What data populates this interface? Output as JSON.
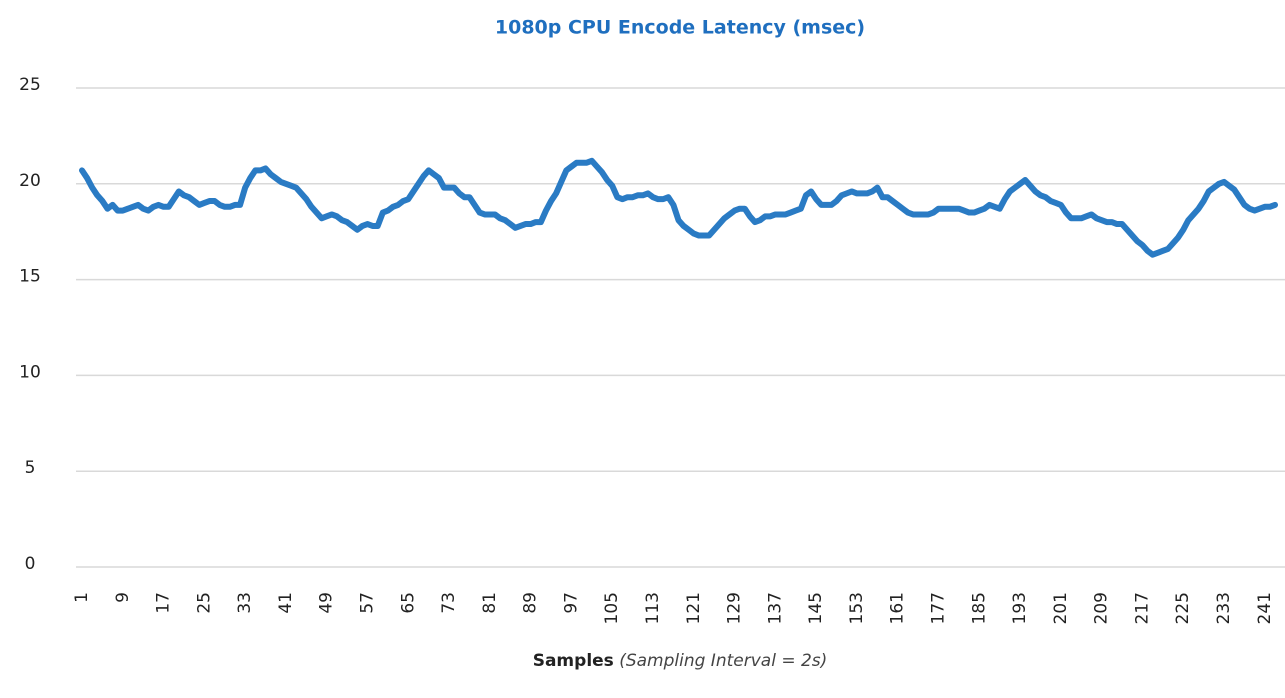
{
  "chart_data": {
    "type": "line",
    "title": "1080p CPU Encode Latency (msec)",
    "x_label": "Samples",
    "x_label_note": "(Sampling Interval = 2s)",
    "color": "#2a7bc4",
    "ylim": [
      0,
      25
    ],
    "yticks": [
      0,
      5,
      10,
      15,
      20,
      25
    ],
    "grid": true,
    "categories": [
      1,
      null,
      null,
      null,
      null,
      null,
      null,
      null,
      9,
      null,
      null,
      null,
      null,
      null,
      null,
      null,
      17,
      null,
      null,
      null,
      null,
      null,
      null,
      null,
      25,
      null,
      null,
      null,
      null,
      null,
      null,
      null,
      33,
      null,
      null,
      null,
      null,
      null,
      null,
      null,
      41,
      null,
      null,
      null,
      null,
      null,
      null,
      null,
      49,
      null,
      null,
      null,
      null,
      null,
      null,
      null,
      57,
      null,
      null,
      null,
      null,
      null,
      null,
      null,
      65,
      null,
      null,
      null,
      null,
      null,
      null,
      null,
      73,
      null,
      null,
      null,
      null,
      null,
      null,
      null,
      81,
      null,
      null,
      null,
      null,
      null,
      null,
      null,
      89,
      null,
      null,
      null,
      null,
      null,
      null,
      null,
      97,
      null,
      null,
      null,
      null,
      null,
      null,
      null,
      105,
      null,
      null,
      null,
      null,
      null,
      null,
      null,
      113,
      null,
      null,
      null,
      null,
      null,
      null,
      null,
      121,
      null,
      null,
      null,
      null,
      null,
      null,
      null,
      129,
      null,
      null,
      null,
      null,
      null,
      null,
      null,
      137,
      null,
      null,
      null,
      null,
      null,
      null,
      null,
      145,
      null,
      null,
      null,
      null,
      null,
      null,
      null,
      153,
      null,
      null,
      null,
      null,
      null,
      null,
      null,
      161,
      null,
      null,
      null,
      null,
      null,
      null,
      null,
      177,
      null,
      null,
      null,
      null,
      null,
      null,
      null,
      185,
      null,
      null,
      null,
      null,
      null,
      null,
      null,
      193,
      null,
      null,
      null,
      null,
      null,
      null,
      null,
      201,
      null,
      null,
      null,
      null,
      null,
      null,
      null,
      209,
      null,
      null,
      null,
      null,
      null,
      null,
      null,
      217,
      null,
      null,
      null,
      null,
      null,
      null,
      null,
      225,
      null,
      null,
      null,
      null,
      null,
      null,
      null,
      233,
      null,
      null,
      null,
      null,
      null,
      null,
      null,
      241,
      null,
      null
    ],
    "values": [
      20.7,
      20.3,
      19.8,
      19.4,
      19.1,
      18.7,
      18.9,
      18.6,
      18.6,
      18.7,
      18.8,
      18.9,
      18.7,
      18.6,
      18.8,
      18.9,
      18.8,
      18.8,
      19.2,
      19.6,
      19.4,
      19.3,
      19.1,
      18.9,
      19.0,
      19.1,
      19.1,
      18.9,
      18.8,
      18.8,
      18.9,
      18.9,
      19.8,
      20.3,
      20.7,
      20.7,
      20.8,
      20.5,
      20.3,
      20.1,
      20.0,
      19.9,
      19.8,
      19.5,
      19.2,
      18.8,
      18.5,
      18.2,
      18.3,
      18.4,
      18.3,
      18.1,
      18.0,
      17.8,
      17.6,
      17.8,
      17.9,
      17.8,
      17.8,
      18.5,
      18.6,
      18.8,
      18.9,
      19.1,
      19.2,
      19.6,
      20.0,
      20.4,
      20.7,
      20.5,
      20.3,
      19.8,
      19.8,
      19.8,
      19.5,
      19.3,
      19.3,
      18.9,
      18.5,
      18.4,
      18.4,
      18.4,
      18.2,
      18.1,
      17.9,
      17.7,
      17.8,
      17.9,
      17.9,
      18.0,
      18.0,
      18.6,
      19.1,
      19.5,
      20.1,
      20.7,
      20.9,
      21.1,
      21.1,
      21.1,
      21.2,
      20.9,
      20.6,
      20.2,
      19.9,
      19.3,
      19.2,
      19.3,
      19.3,
      19.4,
      19.4,
      19.5,
      19.3,
      19.2,
      19.2,
      19.3,
      18.9,
      18.1,
      17.8,
      17.6,
      17.4,
      17.3,
      17.3,
      17.3,
      17.6,
      17.9,
      18.2,
      18.4,
      18.6,
      18.7,
      18.7,
      18.3,
      18.0,
      18.1,
      18.3,
      18.3,
      18.4,
      18.4,
      18.4,
      18.5,
      18.6,
      18.7,
      19.4,
      19.6,
      19.2,
      18.9,
      18.9,
      18.9,
      19.1,
      19.4,
      19.5,
      19.6,
      19.5,
      19.5,
      19.5,
      19.6,
      19.8,
      19.3,
      19.3,
      19.1,
      18.9,
      18.7,
      18.5,
      18.4,
      18.4,
      18.4,
      18.4,
      18.5,
      18.7,
      18.7,
      18.7,
      18.7,
      18.7,
      18.6,
      18.5,
      18.5,
      18.6,
      18.7,
      18.9,
      18.8,
      18.7,
      19.2,
      19.6,
      19.8,
      20.0,
      20.2,
      19.9,
      19.6,
      19.4,
      19.3,
      19.1,
      19.0,
      18.9,
      18.5,
      18.2,
      18.2,
      18.2,
      18.3,
      18.4,
      18.2,
      18.1,
      18.0,
      18.0,
      17.9,
      17.9,
      17.6,
      17.3,
      17.0,
      16.8,
      16.5,
      16.3,
      16.4,
      16.5,
      16.6,
      16.9,
      17.2,
      17.6,
      18.1,
      18.4,
      18.7,
      19.1,
      19.6,
      19.8,
      20.0,
      20.1,
      19.9,
      19.7,
      19.3,
      18.9,
      18.7,
      18.6,
      18.7,
      18.8,
      18.8,
      18.9
    ]
  }
}
